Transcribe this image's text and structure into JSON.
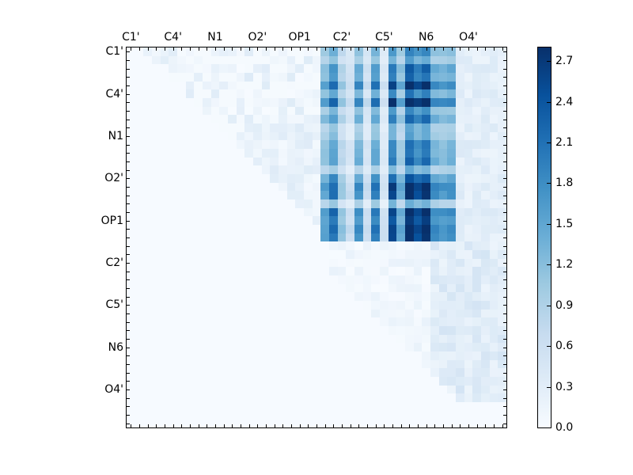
{
  "chart_data": {
    "type": "heatmap",
    "title": "",
    "xlabel": "",
    "ylabel": "",
    "grid": false,
    "n": 45,
    "tick_labels": [
      "C1'",
      "C4'",
      "N1",
      "O2'",
      "OP1",
      "C2'",
      "C5'",
      "N6",
      "O4'"
    ],
    "tick_label_positions": [
      0,
      5,
      10,
      15,
      20,
      25,
      30,
      35,
      40
    ],
    "x_tick_position": "top",
    "colormap": "Blues",
    "colorbar": {
      "min": 0.0,
      "max": 2.8,
      "ticks": [
        "0.0",
        "0.3",
        "0.6",
        "0.9",
        "1.2",
        "1.5",
        "1.8",
        "2.1",
        "2.4",
        "2.7"
      ],
      "tick_values": [
        0.0,
        0.3,
        0.6,
        0.9,
        1.2,
        1.5,
        1.8,
        2.1,
        2.4,
        2.7
      ]
    },
    "column_profile_block": [
      1.4,
      1.9,
      1.0,
      0.6,
      1.6,
      0.6,
      1.8,
      0.5,
      2.3,
      1.3,
      2.6,
      2.2,
      2.5,
      1.6,
      1.5,
      1.6,
      0.6,
      0.9,
      0.3,
      0.35,
      0.25,
      0.2
    ],
    "row_profile_block": [
      0.75,
      0.6,
      0.9,
      0.85,
      1.15,
      0.8,
      1.2,
      0.7,
      0.85,
      0.6,
      0.6,
      0.8,
      0.8,
      0.85,
      0.55,
      0.95,
      1.15,
      1.1,
      0.55,
      1.15,
      1.05,
      1.15,
      1.1
    ],
    "notes": "Rows 0-22 x cols 23-44 hold the strong block; upper-left triangle and lower-right strips are faint (<0.5); lower-left is ~0."
  },
  "colorbar_labels": [
    "0.0",
    "0.3",
    "0.6",
    "0.9",
    "1.2",
    "1.5",
    "1.8",
    "2.1",
    "2.4",
    "2.7"
  ]
}
